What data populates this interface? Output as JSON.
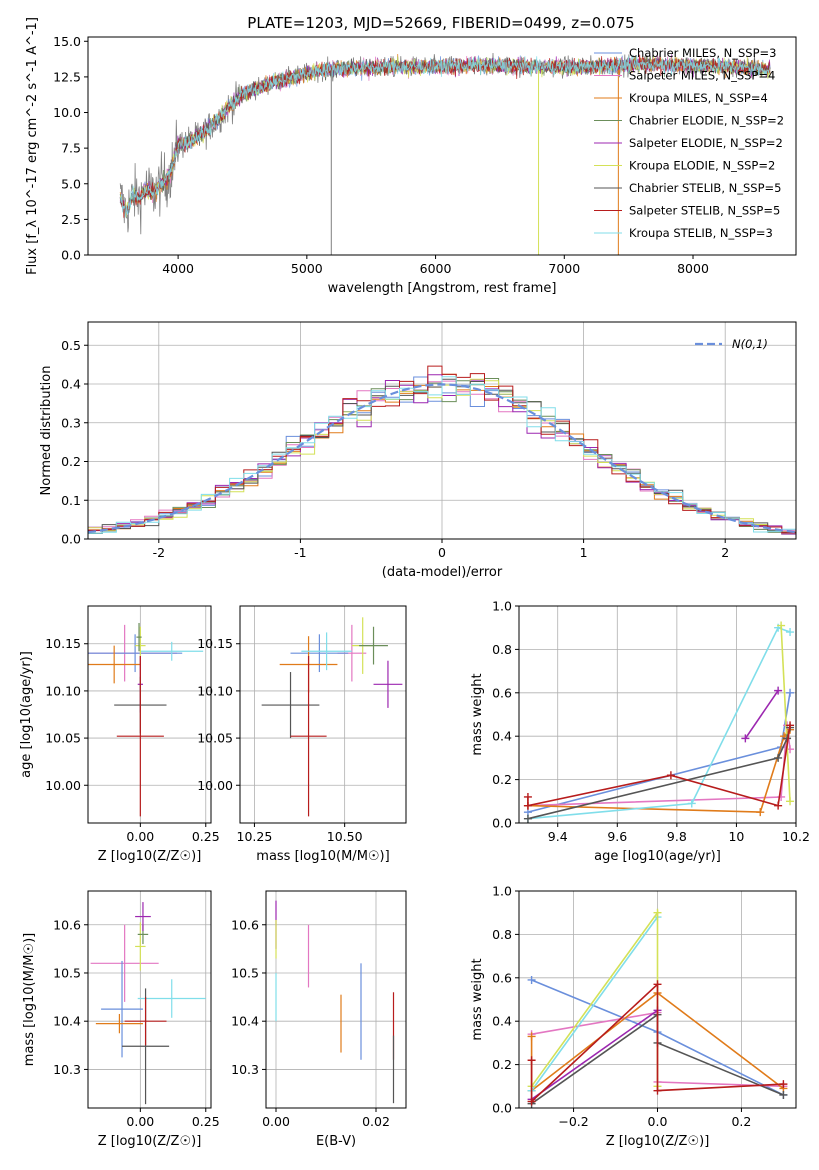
{
  "figure_title": "PLATE=1203, MJD=52669, FIBERID=0499, z=0.075",
  "chart_data": [
    {
      "id": "spectrum",
      "type": "line",
      "xlabel": "wavelength [Angstrom, rest frame]",
      "ylabel": "Flux [f_λ 10^-17 erg cm^-2 s^-1 A^-1]",
      "xlim": [
        3300,
        8800
      ],
      "ylim": [
        0,
        15.3
      ],
      "xticks": [
        4000,
        5000,
        6000,
        7000,
        8000
      ],
      "yticks": [
        0.0,
        2.5,
        5.0,
        7.5,
        10.0,
        12.5,
        15.0
      ],
      "grid": false,
      "legend_position": "right",
      "legend": [
        {
          "label": "Chabrier MILES, N_SSP=3",
          "color": "#6a8fdc"
        },
        {
          "label": "Salpeter MILES, N_SSP=4",
          "color": "#e377c2"
        },
        {
          "label": "Kroupa MILES, N_SSP=4",
          "color": "#e07b1a"
        },
        {
          "label": "Chabrier ELODIE, N_SSP=2",
          "color": "#6b8e5a"
        },
        {
          "label": "Salpeter ELODIE, N_SSP=2",
          "color": "#9c27b0"
        },
        {
          "label": "Kroupa ELODIE, N_SSP=2",
          "color": "#d4e157"
        },
        {
          "label": "Chabrier STELIB, N_SSP=5",
          "color": "#555555"
        },
        {
          "label": "Salpeter STELIB, N_SSP=5",
          "color": "#b71c1c"
        },
        {
          "label": "Kroupa STELIB, N_SSP=3",
          "color": "#80deea"
        }
      ],
      "data_color": "#808080",
      "continuum_knots": {
        "x": [
          3550,
          3600,
          3650,
          3700,
          3750,
          3800,
          3850,
          3900,
          3950,
          4000,
          4100,
          4200,
          4300,
          4400,
          4500,
          4700,
          4900,
          5100,
          5300,
          5600,
          5900,
          6200,
          6500,
          6800,
          7100,
          7400,
          7700,
          8000,
          8300,
          8600
        ],
        "y": [
          4.0,
          3.0,
          4.2,
          4.0,
          4.6,
          4.3,
          4.8,
          5.2,
          6.0,
          7.8,
          8.0,
          8.6,
          9.5,
          10.4,
          11.3,
          12.0,
          12.5,
          13.0,
          13.1,
          13.2,
          13.2,
          13.3,
          13.3,
          13.2,
          13.2,
          13.3,
          13.4,
          13.3,
          13.2,
          13.0
        ]
      }
    },
    {
      "id": "residuals",
      "type": "line",
      "xlabel": "(data-model)/error",
      "ylabel": "Normed distribution",
      "xlim": [
        -2.5,
        2.5
      ],
      "ylim": [
        0,
        0.56
      ],
      "xticks": [
        -2,
        -1,
        0,
        1,
        2
      ],
      "yticks": [
        0.0,
        0.1,
        0.2,
        0.3,
        0.4,
        0.5
      ],
      "grid": true,
      "legend_position": "top-right",
      "legend": [
        {
          "label": "N(0,1)",
          "color": "#6a8fdc"
        }
      ]
    },
    {
      "id": "age-vs-Z",
      "type": "scatter",
      "xlabel": "Z [log10(Z/Z☉)]",
      "ylabel": "age [log10(age/yr)]",
      "xlim": [
        -0.2,
        0.27
      ],
      "ylim": [
        9.96,
        10.19
      ],
      "xticks": [
        -0.25,
        0.0,
        0.25
      ],
      "xticklabels": [
        "",
        "0.00",
        "0.25"
      ],
      "yticks": [
        10.0,
        10.05,
        10.1,
        10.15
      ],
      "grid": true,
      "points": [
        {
          "x": -0.06,
          "y": 10.14,
          "xerr": 0.2,
          "yerr": 0.03,
          "color": "#e377c2"
        },
        {
          "x": -0.02,
          "y": 10.14,
          "xerr": 0.18,
          "yerr": 0.02,
          "color": "#6a8fdc"
        },
        {
          "x": -0.1,
          "y": 10.128,
          "xerr": 0.1,
          "yerr": 0.02,
          "color": "#e07b1a"
        },
        {
          "x": 0.12,
          "y": 10.142,
          "xerr": 0.12,
          "yerr": 0.01,
          "color": "#80deea"
        },
        {
          "x": 0.0,
          "y": 10.148,
          "xerr": 0.02,
          "yerr": 0.02,
          "color": "#d4e157"
        },
        {
          "x": -0.005,
          "y": 10.157,
          "xerr": 0.01,
          "yerr": 0.015,
          "color": "#6b8e5a"
        },
        {
          "x": 0.0,
          "y": 10.107,
          "xerr": 0.01,
          "yerr": 0.03,
          "color": "#9c27b0"
        },
        {
          "x": 0.0,
          "y": 10.085,
          "xerr": 0.1,
          "yerr": 0.03,
          "color": "#555555"
        },
        {
          "x": 0.0,
          "y": 10.052,
          "xerr": 0.09,
          "yerr": 0.085,
          "color": "#b71c1c"
        }
      ]
    },
    {
      "id": "age-vs-mass",
      "type": "scatter",
      "xlabel": "mass [log10(M/M☉)]",
      "ylabel": "",
      "xlim": [
        10.21,
        10.67
      ],
      "ylim": [
        9.96,
        10.19
      ],
      "xticks": [
        10.25,
        10.5
      ],
      "xticklabels": [
        "10.25",
        "10.50"
      ],
      "yticks": [
        10.0,
        10.05,
        10.1,
        10.15
      ],
      "grid": true,
      "points": [
        {
          "x": 10.52,
          "y": 10.14,
          "xerr": 0.04,
          "yerr": 0.03,
          "color": "#e377c2"
        },
        {
          "x": 10.43,
          "y": 10.14,
          "xerr": 0.08,
          "yerr": 0.02,
          "color": "#6a8fdc"
        },
        {
          "x": 10.4,
          "y": 10.128,
          "xerr": 0.08,
          "yerr": 0.03,
          "color": "#e07b1a"
        },
        {
          "x": 10.45,
          "y": 10.142,
          "xerr": 0.07,
          "yerr": 0.02,
          "color": "#80deea"
        },
        {
          "x": 10.55,
          "y": 10.148,
          "xerr": 0.03,
          "yerr": 0.03,
          "color": "#d4e157"
        },
        {
          "x": 10.58,
          "y": 10.148,
          "xerr": 0.04,
          "yerr": 0.02,
          "color": "#6b8e5a"
        },
        {
          "x": 10.62,
          "y": 10.107,
          "xerr": 0.04,
          "yerr": 0.025,
          "color": "#9c27b0"
        },
        {
          "x": 10.35,
          "y": 10.085,
          "xerr": 0.08,
          "yerr": 0.035,
          "color": "#555555"
        },
        {
          "x": 10.4,
          "y": 10.052,
          "xerr": 0.05,
          "yerr": 0.085,
          "color": "#b71c1c"
        }
      ]
    },
    {
      "id": "weight-vs-age",
      "type": "line",
      "xlabel": "age [log10(age/yr)]",
      "ylabel": "mass weight",
      "xlim": [
        9.27,
        10.2
      ],
      "ylim": [
        0,
        1.0
      ],
      "xticks": [
        9.4,
        9.6,
        9.8,
        10.0,
        10.2
      ],
      "yticks": [
        0.0,
        0.2,
        0.4,
        0.6,
        0.8,
        1.0
      ],
      "grid": true,
      "series": [
        {
          "color": "#6a8fdc",
          "x": [
            9.3,
            10.15,
            10.18
          ],
          "y": [
            0.05,
            0.35,
            0.6
          ]
        },
        {
          "color": "#e377c2",
          "x": [
            9.3,
            10.15,
            10.17,
            10.18
          ],
          "y": [
            0.08,
            0.12,
            0.45,
            0.34
          ]
        },
        {
          "color": "#e07b1a",
          "x": [
            9.3,
            10.08,
            10.16,
            10.18
          ],
          "y": [
            0.08,
            0.05,
            0.4,
            0.43
          ]
        },
        {
          "color": "#80deea",
          "x": [
            9.3,
            9.85,
            10.14,
            10.18
          ],
          "y": [
            0.02,
            0.09,
            0.9,
            0.88
          ]
        },
        {
          "color": "#d4e157",
          "x": [
            10.15,
            10.18
          ],
          "y": [
            0.91,
            0.1
          ]
        },
        {
          "color": "#9c27b0",
          "x": [
            10.03,
            10.14
          ],
          "y": [
            0.39,
            0.61
          ]
        },
        {
          "color": "#555555",
          "x": [
            9.3,
            10.14,
            10.17,
            10.18
          ],
          "y": [
            0.02,
            0.3,
            0.39,
            0.44
          ]
        },
        {
          "color": "#b71c1c",
          "x": [
            9.3,
            9.3,
            9.78,
            10.14,
            10.18
          ],
          "y": [
            0.12,
            0.08,
            0.22,
            0.08,
            0.45
          ]
        }
      ]
    },
    {
      "id": "mass-vs-Z",
      "type": "scatter",
      "xlabel": "Z [log10(Z/Z☉)]",
      "ylabel": "mass [log10(M/M☉)]",
      "xlim": [
        -0.2,
        0.27
      ],
      "ylim": [
        10.22,
        10.67
      ],
      "xticks": [
        -0.25,
        0.0,
        0.25
      ],
      "xticklabels": [
        "",
        "0.00",
        "0.25"
      ],
      "yticks": [
        10.3,
        10.4,
        10.5,
        10.6
      ],
      "grid": true,
      "points": [
        {
          "x": -0.06,
          "y": 10.52,
          "xerr": 0.13,
          "yerr": 0.08,
          "color": "#e377c2"
        },
        {
          "x": -0.07,
          "y": 10.425,
          "xerr": 0.08,
          "yerr": 0.1,
          "color": "#6a8fdc"
        },
        {
          "x": -0.08,
          "y": 10.395,
          "xerr": 0.09,
          "yerr": 0.02,
          "color": "#e07b1a"
        },
        {
          "x": 0.12,
          "y": 10.447,
          "xerr": 0.13,
          "yerr": 0.04,
          "color": "#80deea"
        },
        {
          "x": 0.0,
          "y": 10.555,
          "xerr": 0.02,
          "yerr": 0.05,
          "color": "#d4e157"
        },
        {
          "x": 0.01,
          "y": 10.58,
          "xerr": 0.02,
          "yerr": 0.02,
          "color": "#6b8e5a"
        },
        {
          "x": 0.01,
          "y": 10.617,
          "xerr": 0.03,
          "yerr": 0.03,
          "color": "#9c27b0"
        },
        {
          "x": 0.02,
          "y": 10.348,
          "xerr": 0.09,
          "yerr": 0.12,
          "color": "#555555"
        },
        {
          "x": 0.02,
          "y": 10.4,
          "xerr": 0.08,
          "yerr": 0.05,
          "color": "#b71c1c"
        }
      ]
    },
    {
      "id": "mass-vs-ebv",
      "type": "scatter",
      "xlabel": "E(B-V)",
      "ylabel": "",
      "xlim": [
        -0.002,
        0.026
      ],
      "ylim": [
        10.22,
        10.67
      ],
      "xticks": [
        0.0,
        0.02
      ],
      "xticklabels": [
        "0.00",
        "0.02"
      ],
      "yticks": [
        10.3,
        10.4,
        10.5,
        10.6
      ],
      "grid": true,
      "points": [
        {
          "x": 0.0,
          "y": 10.6,
          "xerr": 0,
          "yerr": 0.05,
          "color": "#9c27b0"
        },
        {
          "x": 0.0,
          "y": 10.57,
          "xerr": 0,
          "yerr": 0.04,
          "color": "#d4e157"
        },
        {
          "x": 0.0,
          "y": 10.45,
          "xerr": 0,
          "yerr": 0.05,
          "color": "#80deea"
        },
        {
          "x": 0.0065,
          "y": 10.535,
          "xerr": 0,
          "yerr": 0.065,
          "color": "#e377c2"
        },
        {
          "x": 0.013,
          "y": 10.395,
          "xerr": 0,
          "yerr": 0.06,
          "color": "#e07b1a"
        },
        {
          "x": 0.017,
          "y": 10.42,
          "xerr": 0,
          "yerr": 0.1,
          "color": "#6a8fdc"
        },
        {
          "x": 0.0235,
          "y": 10.39,
          "xerr": 0,
          "yerr": 0.07,
          "color": "#b71c1c"
        },
        {
          "x": 0.0235,
          "y": 10.3,
          "xerr": 0,
          "yerr": 0.07,
          "color": "#555555"
        }
      ]
    },
    {
      "id": "weight-vs-Z",
      "type": "line",
      "xlabel": "Z [log10(Z/Z☉)]",
      "ylabel": "mass weight",
      "xlim": [
        -0.33,
        0.33
      ],
      "ylim": [
        0,
        1.0
      ],
      "xticks": [
        -0.2,
        0.0,
        0.2
      ],
      "xticklabels": [
        "−0.2",
        "0.0",
        "0.2"
      ],
      "yticks": [
        0.0,
        0.2,
        0.4,
        0.6,
        0.8,
        1.0
      ],
      "grid": true,
      "series": [
        {
          "color": "#6a8fdc",
          "x": [
            -0.3,
            0.0,
            0.3
          ],
          "y": [
            0.59,
            0.35,
            0.06
          ]
        },
        {
          "color": "#e377c2",
          "x": [
            -0.3,
            0.0,
            0.0,
            0.3
          ],
          "y": [
            0.34,
            0.44,
            0.12,
            0.1
          ]
        },
        {
          "color": "#e07b1a",
          "x": [
            -0.3,
            -0.3,
            0.0,
            0.3
          ],
          "y": [
            0.33,
            0.08,
            0.53,
            0.09
          ]
        },
        {
          "color": "#80deea",
          "x": [
            -0.3,
            0.0
          ],
          "y": [
            0.08,
            0.88
          ]
        },
        {
          "color": "#d4e157",
          "x": [
            -0.3,
            0.0,
            0.0
          ],
          "y": [
            0.1,
            0.9,
            0.1
          ]
        },
        {
          "color": "#9c27b0",
          "x": [
            -0.3,
            0.0
          ],
          "y": [
            0.04,
            0.45
          ]
        },
        {
          "color": "#555555",
          "x": [
            -0.3,
            0.0,
            0.0,
            0.3
          ],
          "y": [
            0.02,
            0.43,
            0.3,
            0.06
          ]
        },
        {
          "color": "#b71c1c",
          "x": [
            -0.3,
            -0.3,
            0.0,
            0.0,
            0.3
          ],
          "y": [
            0.22,
            0.03,
            0.57,
            0.08,
            0.11
          ]
        }
      ]
    }
  ]
}
